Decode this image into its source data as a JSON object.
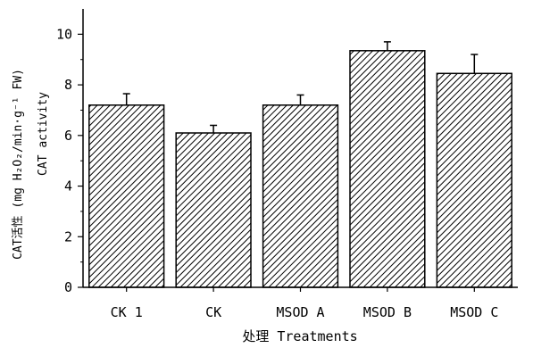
{
  "chart_data": {
    "type": "bar",
    "categories": [
      "CK 1",
      "CK",
      "MSOD A",
      "MSOD B",
      "MSOD C"
    ],
    "values": [
      7.2,
      6.1,
      7.2,
      9.35,
      8.45
    ],
    "errors": [
      0.45,
      0.3,
      0.4,
      0.35,
      0.75
    ],
    "xlabel": "处理 Treatments",
    "ylabel_line1": "CAT活性 (mg H₂O₂/min·g⁻¹ FW)",
    "ylabel_line2": "CAT activity",
    "ylim": [
      0,
      11
    ],
    "yticks": [
      0,
      2,
      4,
      6,
      8,
      10
    ],
    "grid": false,
    "bar_fill": "hatched-diagonal",
    "colors": {
      "bar_stroke": "#000000",
      "hatch": "#000000"
    }
  }
}
